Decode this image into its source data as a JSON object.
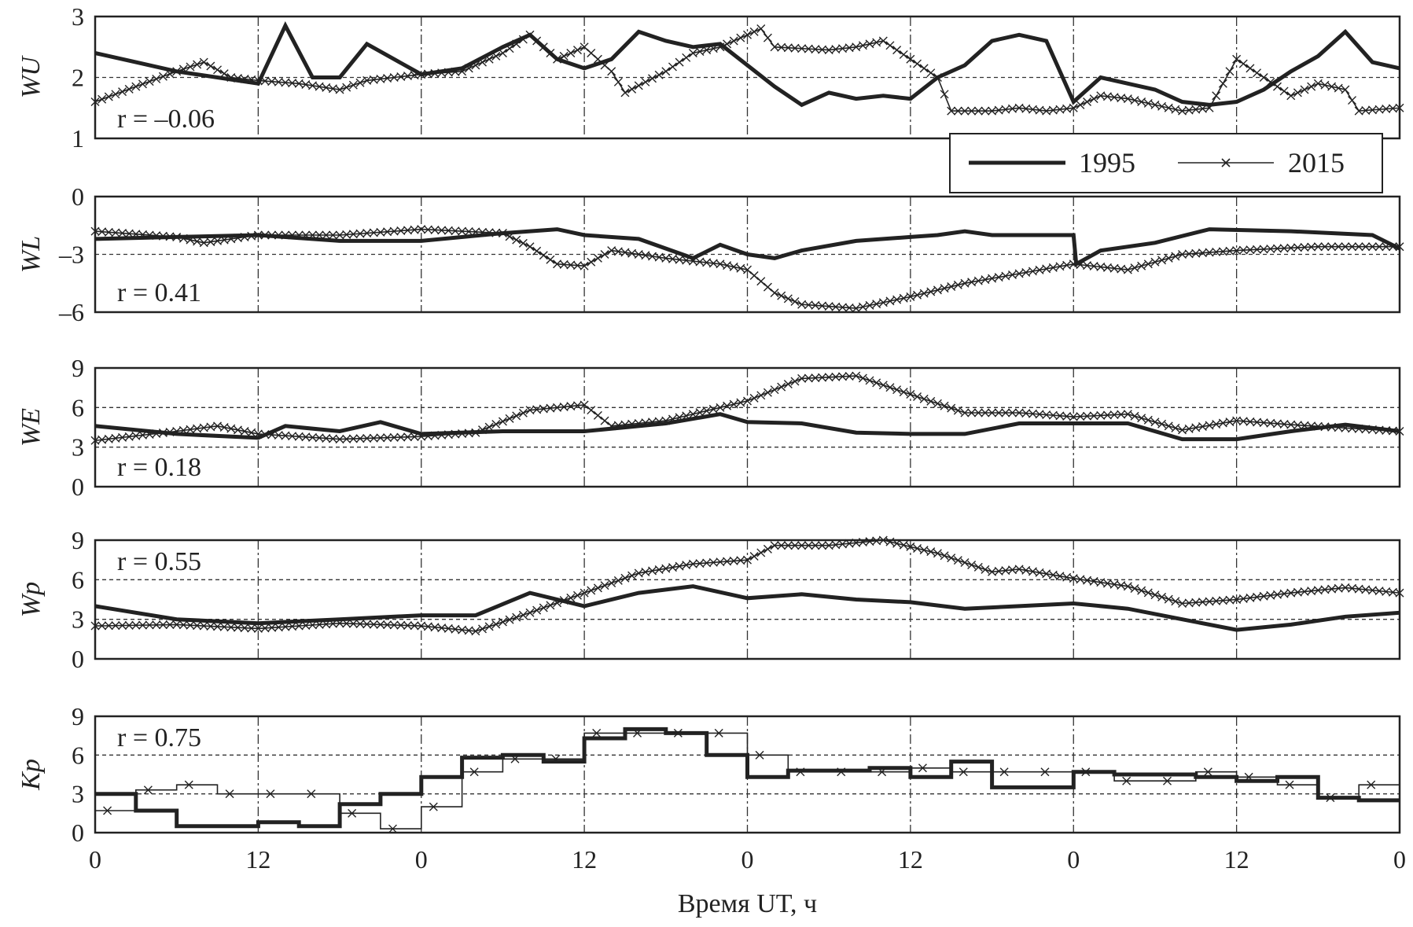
{
  "chart_data": [
    {
      "type": "line",
      "ylabel": "WU",
      "r_label": "r = –0.06",
      "ylim": [
        1,
        3
      ],
      "yticks": [
        "1",
        "2",
        "3"
      ],
      "ygrid": [
        2
      ],
      "series": [
        {
          "name": "1995",
          "points": [
            [
              0,
              2.4
            ],
            [
              3,
              2.25
            ],
            [
              6,
              2.1
            ],
            [
              9,
              2.0
            ],
            [
              12,
              1.9
            ],
            [
              14,
              2.85
            ],
            [
              16,
              2.0
            ],
            [
              18,
              2.0
            ],
            [
              20,
              2.55
            ],
            [
              24,
              2.05
            ],
            [
              27,
              2.15
            ],
            [
              30,
              2.5
            ],
            [
              32,
              2.7
            ],
            [
              34,
              2.3
            ],
            [
              36,
              2.15
            ],
            [
              38,
              2.3
            ],
            [
              40,
              2.75
            ],
            [
              42,
              2.6
            ],
            [
              44,
              2.5
            ],
            [
              46,
              2.55
            ],
            [
              48,
              2.2
            ],
            [
              50,
              1.85
            ],
            [
              52,
              1.55
            ],
            [
              54,
              1.75
            ],
            [
              56,
              1.65
            ],
            [
              58,
              1.7
            ],
            [
              60,
              1.65
            ],
            [
              62,
              2.0
            ],
            [
              64,
              2.2
            ],
            [
              66,
              2.6
            ],
            [
              68,
              2.7
            ],
            [
              70,
              2.6
            ],
            [
              72,
              1.6
            ],
            [
              74,
              2.0
            ],
            [
              76,
              1.9
            ],
            [
              78,
              1.8
            ],
            [
              80,
              1.6
            ],
            [
              82,
              1.55
            ],
            [
              84,
              1.6
            ],
            [
              86,
              1.8
            ],
            [
              88,
              2.1
            ],
            [
              90,
              2.35
            ],
            [
              92,
              2.75
            ],
            [
              94,
              2.25
            ],
            [
              96,
              2.15
            ]
          ]
        },
        {
          "name": "2015",
          "points": [
            [
              0,
              1.6
            ],
            [
              3,
              1.85
            ],
            [
              6,
              2.1
            ],
            [
              8,
              2.25
            ],
            [
              10,
              2.0
            ],
            [
              12,
              1.95
            ],
            [
              15,
              1.9
            ],
            [
              18,
              1.8
            ],
            [
              20,
              1.95
            ],
            [
              24,
              2.05
            ],
            [
              27,
              2.1
            ],
            [
              30,
              2.4
            ],
            [
              32,
              2.7
            ],
            [
              34,
              2.3
            ],
            [
              36,
              2.5
            ],
            [
              38,
              2.1
            ],
            [
              39,
              1.75
            ],
            [
              42,
              2.1
            ],
            [
              44,
              2.4
            ],
            [
              46,
              2.5
            ],
            [
              48,
              2.7
            ],
            [
              49,
              2.8
            ],
            [
              50,
              2.5
            ],
            [
              54,
              2.45
            ],
            [
              56,
              2.5
            ],
            [
              58,
              2.6
            ],
            [
              60,
              2.3
            ],
            [
              62,
              2.0
            ],
            [
              63,
              1.45
            ],
            [
              66,
              1.45
            ],
            [
              68,
              1.5
            ],
            [
              70,
              1.45
            ],
            [
              72,
              1.5
            ],
            [
              74,
              1.7
            ],
            [
              76,
              1.65
            ],
            [
              78,
              1.55
            ],
            [
              80,
              1.45
            ],
            [
              82,
              1.5
            ],
            [
              84,
              2.3
            ],
            [
              86,
              2.0
            ],
            [
              88,
              1.7
            ],
            [
              90,
              1.9
            ],
            [
              92,
              1.8
            ],
            [
              93,
              1.45
            ],
            [
              96,
              1.5
            ]
          ]
        }
      ]
    },
    {
      "type": "line",
      "ylabel": "WL",
      "r_label": "r = 0.41",
      "ylim": [
        -6,
        0
      ],
      "yticks": [
        "–6",
        "–3",
        "0"
      ],
      "ygrid": [
        -3
      ],
      "series": [
        {
          "name": "1995",
          "points": [
            [
              0,
              -2.2
            ],
            [
              6,
              -2.1
            ],
            [
              12,
              -2.0
            ],
            [
              18,
              -2.3
            ],
            [
              24,
              -2.3
            ],
            [
              30,
              -1.9
            ],
            [
              34,
              -1.7
            ],
            [
              36,
              -2.0
            ],
            [
              40,
              -2.2
            ],
            [
              44,
              -3.2
            ],
            [
              46,
              -2.5
            ],
            [
              48,
              -3.0
            ],
            [
              50,
              -3.2
            ],
            [
              52,
              -2.8
            ],
            [
              56,
              -2.3
            ],
            [
              60,
              -2.1
            ],
            [
              62,
              -2.0
            ],
            [
              64,
              -1.8
            ],
            [
              66,
              -2.0
            ],
            [
              72,
              -2.0
            ],
            [
              72.2,
              -3.5
            ],
            [
              74,
              -2.8
            ],
            [
              78,
              -2.4
            ],
            [
              82,
              -1.7
            ],
            [
              88,
              -1.8
            ],
            [
              94,
              -2.0
            ],
            [
              96,
              -2.7
            ]
          ]
        },
        {
          "name": "2015",
          "points": [
            [
              0,
              -1.8
            ],
            [
              6,
              -2.1
            ],
            [
              8,
              -2.4
            ],
            [
              12,
              -2.0
            ],
            [
              18,
              -2.0
            ],
            [
              24,
              -1.7
            ],
            [
              30,
              -1.9
            ],
            [
              32,
              -2.6
            ],
            [
              34,
              -3.5
            ],
            [
              36,
              -3.6
            ],
            [
              38,
              -2.8
            ],
            [
              42,
              -3.2
            ],
            [
              46,
              -3.5
            ],
            [
              48,
              -3.8
            ],
            [
              50,
              -5.0
            ],
            [
              52,
              -5.6
            ],
            [
              56,
              -5.8
            ],
            [
              60,
              -5.2
            ],
            [
              64,
              -4.5
            ],
            [
              68,
              -4.0
            ],
            [
              72,
              -3.5
            ],
            [
              76,
              -3.8
            ],
            [
              80,
              -3.0
            ],
            [
              84,
              -2.8
            ],
            [
              90,
              -2.6
            ],
            [
              96,
              -2.6
            ]
          ]
        }
      ]
    },
    {
      "type": "line",
      "ylabel": "WE",
      "r_label": "r = 0.18",
      "ylim": [
        0,
        9
      ],
      "yticks": [
        "0",
        "3",
        "6",
        "9"
      ],
      "ygrid": [
        3,
        6
      ],
      "series": [
        {
          "name": "1995",
          "points": [
            [
              0,
              4.6
            ],
            [
              6,
              4.0
            ],
            [
              12,
              3.7
            ],
            [
              14,
              4.6
            ],
            [
              18,
              4.2
            ],
            [
              21,
              4.9
            ],
            [
              24,
              4.0
            ],
            [
              30,
              4.2
            ],
            [
              36,
              4.2
            ],
            [
              42,
              4.8
            ],
            [
              46,
              5.5
            ],
            [
              48,
              4.9
            ],
            [
              52,
              4.8
            ],
            [
              56,
              4.1
            ],
            [
              60,
              4.0
            ],
            [
              64,
              4.0
            ],
            [
              68,
              4.8
            ],
            [
              72,
              4.8
            ],
            [
              76,
              4.8
            ],
            [
              80,
              3.6
            ],
            [
              84,
              3.6
            ],
            [
              88,
              4.2
            ],
            [
              92,
              4.7
            ],
            [
              96,
              4.2
            ]
          ]
        },
        {
          "name": "2015",
          "points": [
            [
              0,
              3.5
            ],
            [
              6,
              4.2
            ],
            [
              9,
              4.6
            ],
            [
              12,
              4.0
            ],
            [
              18,
              3.6
            ],
            [
              24,
              3.8
            ],
            [
              28,
              4.1
            ],
            [
              32,
              5.8
            ],
            [
              36,
              6.2
            ],
            [
              38,
              4.6
            ],
            [
              42,
              5.0
            ],
            [
              46,
              6.0
            ],
            [
              48,
              6.5
            ],
            [
              52,
              8.2
            ],
            [
              56,
              8.4
            ],
            [
              60,
              7.0
            ],
            [
              64,
              5.6
            ],
            [
              68,
              5.6
            ],
            [
              72,
              5.3
            ],
            [
              76,
              5.5
            ],
            [
              80,
              4.3
            ],
            [
              84,
              5.0
            ],
            [
              88,
              4.7
            ],
            [
              96,
              4.2
            ]
          ]
        }
      ]
    },
    {
      "type": "line",
      "ylabel": "Wp",
      "r_label": "r = 0.55",
      "ylim": [
        0,
        9
      ],
      "yticks": [
        "0",
        "3",
        "6",
        "9"
      ],
      "ygrid": [
        3,
        6,
        9
      ],
      "series": [
        {
          "name": "1995",
          "points": [
            [
              0,
              4.0
            ],
            [
              6,
              3.0
            ],
            [
              12,
              2.7
            ],
            [
              18,
              3.0
            ],
            [
              24,
              3.3
            ],
            [
              28,
              3.3
            ],
            [
              32,
              5.0
            ],
            [
              36,
              4.0
            ],
            [
              40,
              5.0
            ],
            [
              44,
              5.5
            ],
            [
              48,
              4.6
            ],
            [
              52,
              4.9
            ],
            [
              56,
              4.5
            ],
            [
              60,
              4.3
            ],
            [
              64,
              3.8
            ],
            [
              68,
              4.0
            ],
            [
              72,
              4.2
            ],
            [
              76,
              3.8
            ],
            [
              80,
              3.0
            ],
            [
              84,
              2.2
            ],
            [
              88,
              2.6
            ],
            [
              92,
              3.2
            ],
            [
              96,
              3.5
            ]
          ]
        },
        {
          "name": "2015",
          "points": [
            [
              0,
              2.5
            ],
            [
              6,
              2.6
            ],
            [
              12,
              2.3
            ],
            [
              18,
              2.7
            ],
            [
              24,
              2.5
            ],
            [
              28,
              2.1
            ],
            [
              32,
              3.5
            ],
            [
              36,
              5.0
            ],
            [
              40,
              6.5
            ],
            [
              44,
              7.2
            ],
            [
              48,
              7.5
            ],
            [
              50,
              8.6
            ],
            [
              54,
              8.6
            ],
            [
              58,
              9.0
            ],
            [
              62,
              8.0
            ],
            [
              66,
              6.6
            ],
            [
              68,
              6.8
            ],
            [
              72,
              6.1
            ],
            [
              76,
              5.5
            ],
            [
              80,
              4.2
            ],
            [
              84,
              4.5
            ],
            [
              88,
              5.0
            ],
            [
              92,
              5.4
            ],
            [
              96,
              5.0
            ]
          ]
        }
      ]
    },
    {
      "type": "step",
      "ylabel": "Kp",
      "r_label": "r = 0.75",
      "ylim": [
        0,
        9
      ],
      "yticks": [
        "0",
        "3",
        "6",
        "9"
      ],
      "ygrid": [
        3,
        6
      ],
      "step_hours": 3,
      "series": [
        {
          "name": "1995",
          "values": [
            3,
            1.7,
            0.5,
            0.5,
            0.8,
            0.5,
            2.2,
            3,
            4.3,
            5.8,
            6.0,
            5.5,
            7.3,
            8.0,
            7.7,
            6.0,
            4.3,
            4.8,
            4.8,
            5.0,
            4.3,
            5.5,
            3.5,
            3.5,
            4.7,
            4.5,
            4.5,
            4.3,
            4.0,
            4.3,
            2.7,
            2.5
          ]
        },
        {
          "name": "2015",
          "values": [
            1.7,
            3.3,
            3.7,
            3.0,
            3.0,
            3.0,
            1.5,
            0.3,
            2.0,
            4.7,
            5.7,
            5.7,
            7.7,
            7.7,
            7.7,
            7.7,
            6.0,
            4.7,
            4.7,
            4.7,
            5.0,
            4.7,
            4.7,
            4.7,
            4.7,
            4.0,
            4.0,
            4.7,
            4.3,
            3.7,
            2.7,
            3.7
          ]
        }
      ]
    }
  ],
  "xaxis": {
    "label": "Время UT, ч",
    "range": [
      0,
      96
    ],
    "tick_values": [
      0,
      12,
      24,
      36,
      48,
      60,
      72,
      84,
      96
    ],
    "tick_labels": [
      "0",
      "12",
      "0",
      "12",
      "0",
      "12",
      "0",
      "12",
      "0"
    ]
  },
  "legend": {
    "entries": [
      "1995",
      "2015"
    ],
    "placement": "below-top-panel-right"
  },
  "colors": {
    "line": "#222222",
    "grid": "#333333"
  }
}
